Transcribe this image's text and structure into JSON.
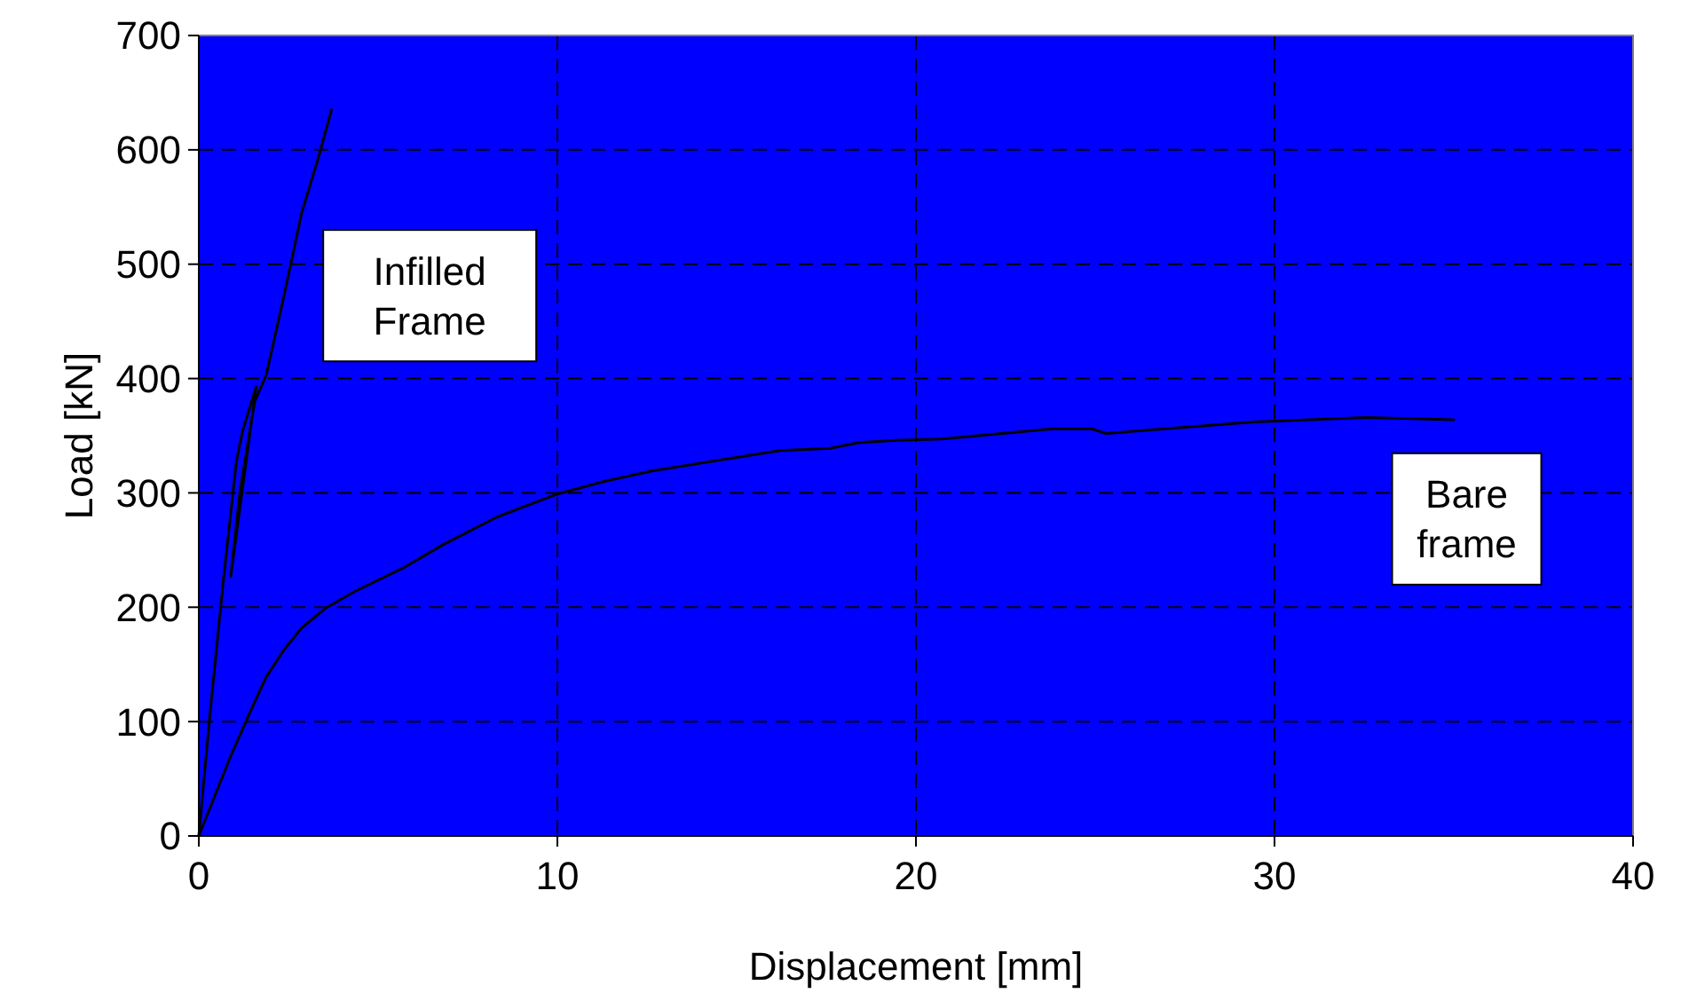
{
  "chart_data": {
    "type": "line",
    "xlabel": "Displacement [mm]",
    "ylabel": "Load [kN]",
    "xlim": [
      0,
      40
    ],
    "ylim": [
      0,
      700
    ],
    "xticks": [
      0,
      10,
      20,
      30,
      40
    ],
    "yticks": [
      0,
      100,
      200,
      300,
      400,
      500,
      600,
      700
    ],
    "grid": true,
    "line_style": "solid",
    "marker": "none",
    "series": [
      {
        "color": "#000000",
        "x": [
          0,
          0.31,
          0.69,
          1.05,
          1.22,
          1.6,
          0.89,
          1.15,
          1.56,
          1.88,
          2.38,
          2.87,
          3.37,
          3.7
        ],
        "values": [
          0,
          106,
          225,
          328,
          354,
          393,
          227,
          302,
          380,
          403,
          473,
          545,
          597,
          635
        ]
      },
      {
        "color": "#000000",
        "x": [
          0,
          0.89,
          1.47,
          1.88,
          2.38,
          2.87,
          3.53,
          4.36,
          5.68,
          6.83,
          8.32,
          10,
          11.3,
          12.6,
          14.4,
          16.2,
          17.6,
          18.4,
          19.4,
          20.7,
          23.8,
          24.9,
          25.3,
          29.4,
          32.6,
          35
        ],
        "values": [
          0,
          70,
          111,
          139,
          163,
          182,
          199,
          214,
          234,
          255,
          279,
          299,
          310,
          319,
          328,
          337,
          339,
          344,
          346,
          347,
          356,
          356,
          352,
          362,
          366,
          364
        ]
      }
    ],
    "annotations": [
      "Infilled Frame",
      "Bare frame"
    ]
  }
}
